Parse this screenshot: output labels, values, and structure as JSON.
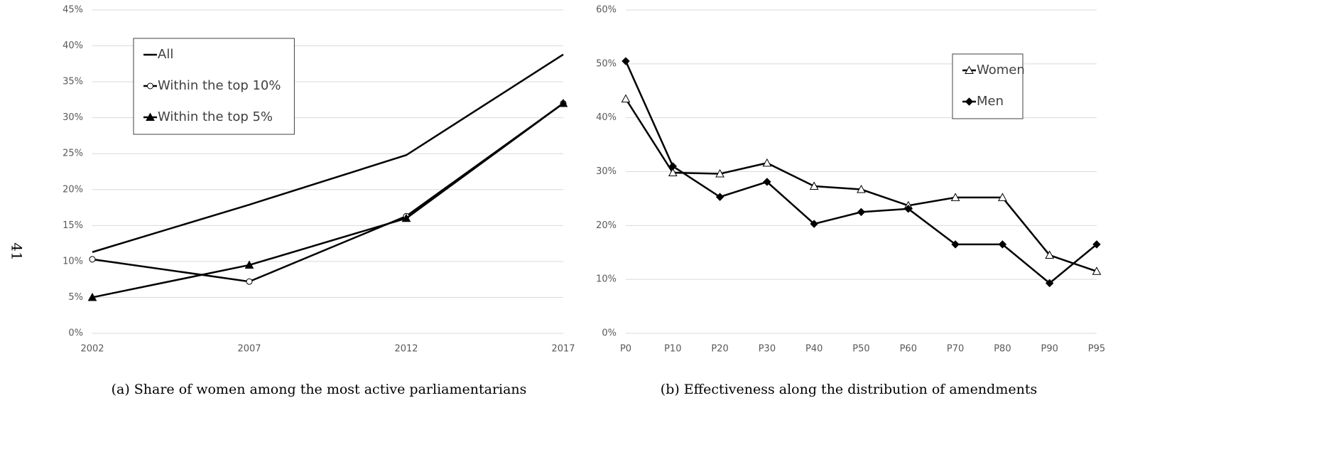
{
  "page_number": "41",
  "chart_data": [
    {
      "type": "line",
      "caption": "(a) Share of women among the most active parliamentarians",
      "categories": [
        "2002",
        "2007",
        "2012",
        "2017"
      ],
      "series": [
        {
          "name": "All",
          "color": "#000000",
          "marker": "none",
          "values": [
            11.3,
            17.9,
            24.8,
            38.8
          ]
        },
        {
          "name": "Within the top 10%",
          "color": "#000000",
          "marker": "open-circle",
          "values": [
            10.3,
            7.2,
            16.3,
            32.0
          ]
        },
        {
          "name": "Within the top 5%",
          "color": "#000000",
          "marker": "filled-triangle",
          "values": [
            5.0,
            9.5,
            16.0,
            32.0
          ]
        }
      ],
      "ylim": [
        0,
        45
      ],
      "yticks": [
        {
          "value": 0,
          "label": "0%"
        },
        {
          "value": 5,
          "label": "5%"
        },
        {
          "value": 10,
          "label": "10%"
        },
        {
          "value": 15,
          "label": "15%"
        },
        {
          "value": 20,
          "label": "20%"
        },
        {
          "value": 25,
          "label": "25%"
        },
        {
          "value": 30,
          "label": "30%"
        },
        {
          "value": 35,
          "label": "35%"
        },
        {
          "value": 40,
          "label": "40%"
        },
        {
          "value": 45,
          "label": "45%"
        }
      ],
      "grid": true,
      "legend": "upper left"
    },
    {
      "type": "line",
      "caption": "(b) Effectiveness along the distribution of amendments",
      "categories": [
        "P0",
        "P10",
        "P20",
        "P30",
        "P40",
        "P50",
        "P60",
        "P70",
        "P80",
        "P90",
        "P95"
      ],
      "series": [
        {
          "name": "Women",
          "color": "#000000",
          "marker": "open-triangle",
          "values": [
            43.5,
            29.8,
            29.6,
            31.6,
            27.3,
            26.7,
            23.7,
            25.2,
            25.2,
            14.5,
            11.5
          ]
        },
        {
          "name": "Men",
          "color": "#000000",
          "marker": "filled-diamond",
          "values": [
            50.5,
            31.0,
            25.3,
            28.1,
            20.3,
            22.5,
            23.1,
            16.5,
            16.5,
            9.3,
            16.5
          ]
        }
      ],
      "ylim": [
        0,
        60
      ],
      "yticks": [
        {
          "value": 0,
          "label": "0%"
        },
        {
          "value": 10,
          "label": "10%"
        },
        {
          "value": 20,
          "label": "20%"
        },
        {
          "value": 30,
          "label": "30%"
        },
        {
          "value": 40,
          "label": "40%"
        },
        {
          "value": 50,
          "label": "50%"
        },
        {
          "value": 60,
          "label": "60%"
        }
      ],
      "grid": true,
      "legend": "upper right"
    }
  ]
}
